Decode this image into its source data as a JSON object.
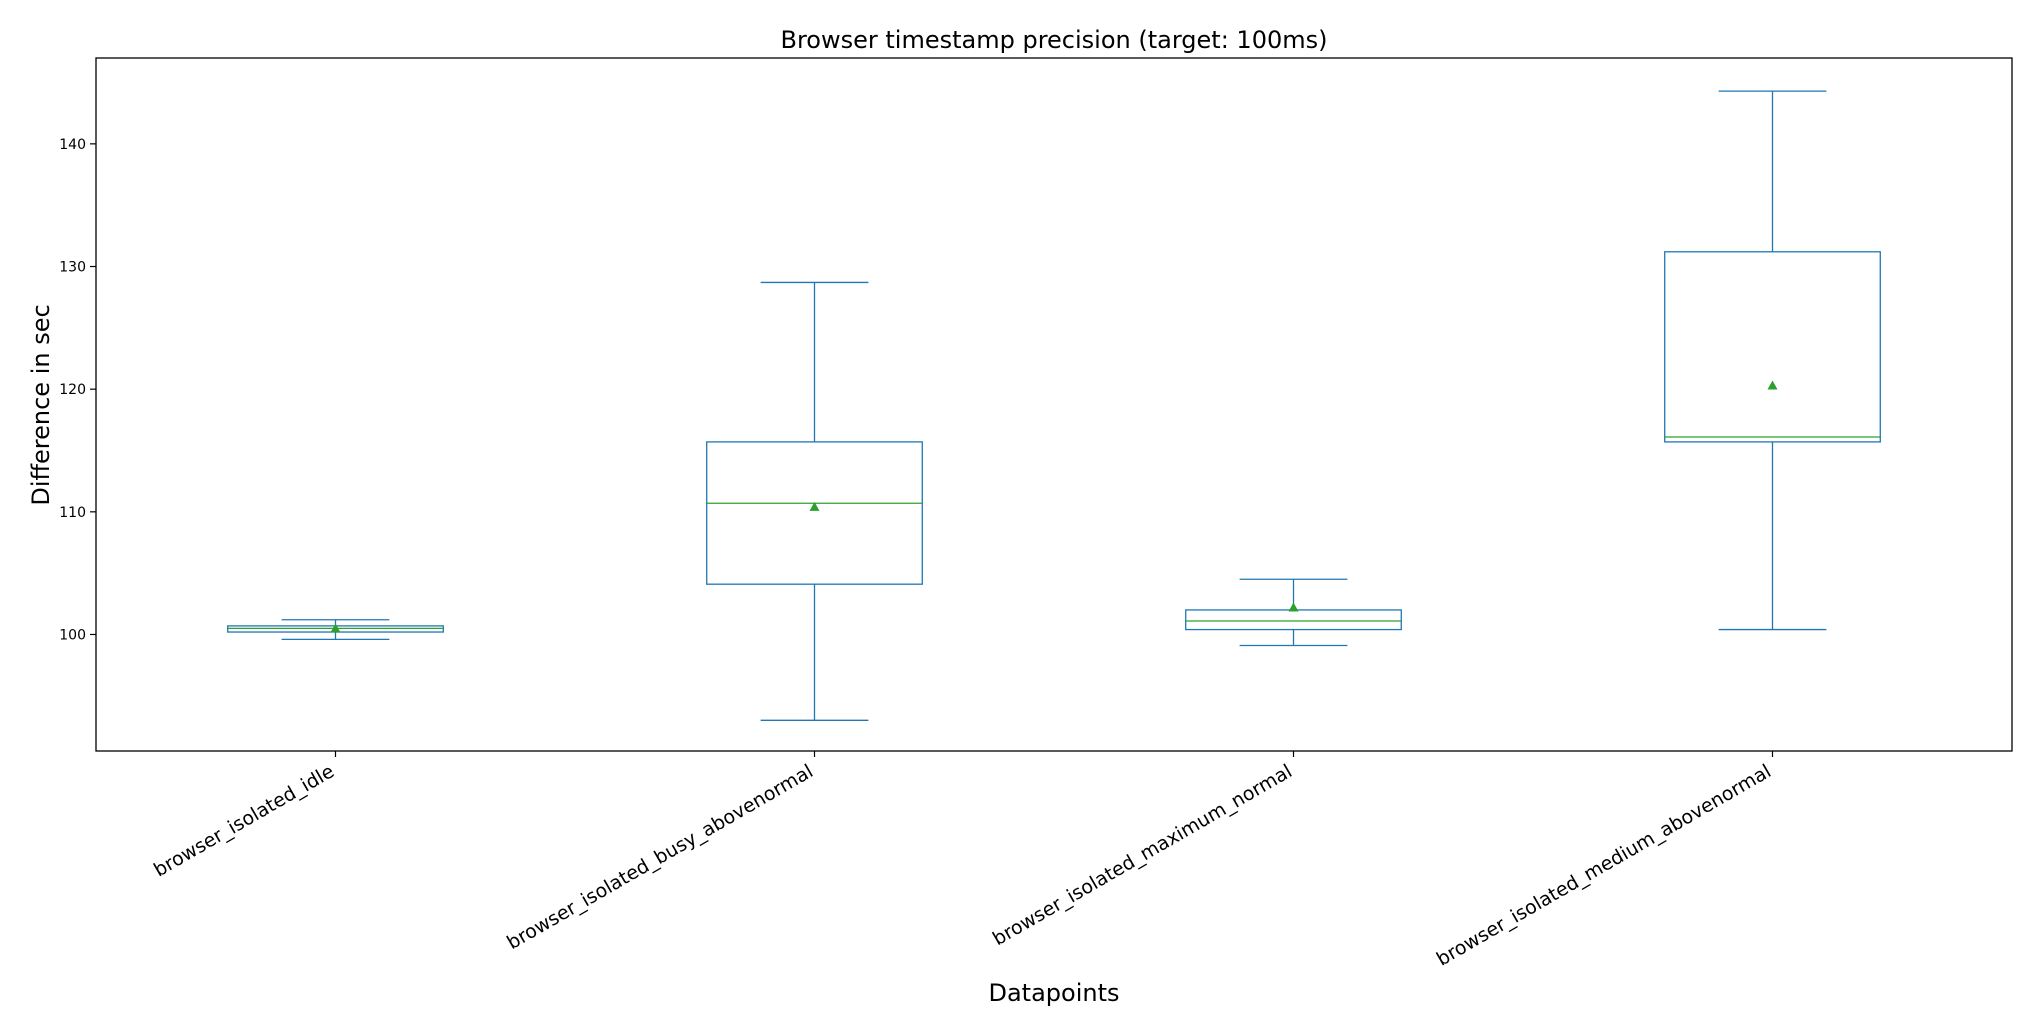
{
  "chart_data": {
    "type": "box",
    "title": "Browser timestamp precision (target: 100ms)",
    "xlabel": "Datapoints",
    "ylabel": "Difference in sec",
    "ylim": [
      90.5,
      147
    ],
    "yticks": [
      100,
      110,
      120,
      130,
      140
    ],
    "grid": false,
    "legend": "none",
    "colors": {
      "box": "#1f77b4",
      "median": "#2ca02c",
      "mean_marker": "#2ca02c",
      "frame": "#000000"
    },
    "categories": [
      "browser_isolated_idle",
      "browser_isolated_busy_abovenormal",
      "browser_isolated_maximum_normal",
      "browser_isolated_medium_abovenormal"
    ],
    "boxes": [
      {
        "whislo": 99.6,
        "q1": 100.2,
        "med": 100.5,
        "q3": 100.7,
        "whishi": 101.2,
        "mean": 100.5
      },
      {
        "whislo": 93.0,
        "q1": 104.1,
        "med": 110.7,
        "q3": 115.7,
        "whishi": 128.7,
        "mean": 110.4
      },
      {
        "whislo": 99.1,
        "q1": 100.4,
        "med": 101.1,
        "q3": 102.0,
        "whishi": 104.5,
        "mean": 102.2
      },
      {
        "whislo": 100.4,
        "q1": 115.7,
        "med": 116.1,
        "q3": 131.2,
        "whishi": 144.3,
        "mean": 120.3
      }
    ]
  }
}
